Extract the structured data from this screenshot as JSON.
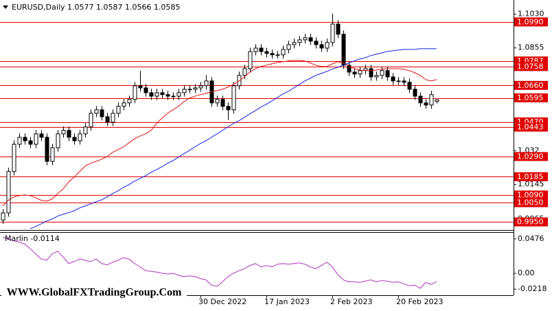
{
  "chart_data": [
    {
      "type": "candlestick",
      "title": "EURUSD,Daily  1.0577 1.0587 1.0566 1.0585",
      "categories": [
        null,
        null,
        null,
        null,
        null,
        null,
        null,
        null,
        null,
        null,
        null,
        null,
        null,
        null,
        null,
        null,
        null,
        null,
        null,
        null,
        null,
        null,
        null,
        null,
        null,
        null,
        null,
        null,
        null,
        null,
        null,
        null,
        null,
        null,
        null,
        null,
        "30 Dec 2022",
        null,
        null,
        null,
        null,
        null,
        null,
        null,
        null,
        null,
        null,
        null,
        "17 Jan 2023",
        null,
        null,
        null,
        null,
        null,
        null,
        null,
        null,
        null,
        null,
        null,
        "2 Feb 2023",
        null,
        null,
        null,
        null,
        null,
        null,
        null,
        null,
        null,
        null,
        null,
        "20 Feb 2023",
        null,
        null,
        null,
        null,
        null,
        null,
        null
      ],
      "open": [
        0.996,
        0.9997,
        1.0212,
        1.0354,
        1.039,
        1.0372,
        1.0354,
        1.0408,
        1.039,
        1.0265,
        1.0336,
        1.0408,
        1.0426,
        1.039,
        1.0372,
        1.0408,
        1.0444,
        1.0515,
        1.0533,
        1.0497,
        1.0469,
        1.0515,
        1.0551,
        1.0569,
        1.0587,
        1.0658,
        1.0647,
        1.0622,
        1.0604,
        1.0622,
        1.0612,
        1.0604,
        1.0604,
        1.0622,
        1.064,
        1.064,
        1.0647,
        1.0658,
        1.0683,
        1.0569,
        1.0587,
        1.0551,
        1.0533,
        1.0658,
        1.0712,
        1.0747,
        1.0836,
        1.0854,
        1.0836,
        1.0826,
        1.0819,
        1.0819,
        1.0847,
        1.0872,
        1.0883,
        1.0897,
        1.0908,
        1.089,
        1.0872,
        1.0854,
        1.0883,
        1.0979,
        1.0926,
        1.0765,
        1.0729,
        1.0719,
        1.0737,
        1.0747,
        1.0704,
        1.0712,
        1.0737,
        1.0704,
        1.0683,
        1.0683,
        1.0676,
        1.064,
        1.0604,
        1.0569,
        1.0558,
        1.0577
      ],
      "high": [
        1.0017,
        1.0232,
        1.0374,
        1.041,
        1.041,
        1.0392,
        1.0428,
        1.0428,
        1.041,
        1.0356,
        1.0428,
        1.0446,
        1.0446,
        1.041,
        1.0428,
        1.0464,
        1.0535,
        1.0553,
        1.0553,
        1.0517,
        1.0535,
        1.0571,
        1.0589,
        1.0607,
        1.0678,
        1.0736,
        1.0667,
        1.0642,
        1.0642,
        1.0642,
        1.0632,
        1.0624,
        1.0642,
        1.066,
        1.066,
        1.0667,
        1.0678,
        1.0713,
        1.0703,
        1.0607,
        1.0607,
        1.0571,
        1.0678,
        1.0732,
        1.0767,
        1.0856,
        1.0874,
        1.0874,
        1.0856,
        1.0846,
        1.0839,
        1.0867,
        1.0892,
        1.0903,
        1.0917,
        1.0928,
        1.0928,
        1.091,
        1.0892,
        1.0903,
        1.1033,
        1.0999,
        1.0946,
        1.0785,
        1.0749,
        1.0757,
        1.0767,
        1.0767,
        1.0732,
        1.0757,
        1.0757,
        1.0724,
        1.0703,
        1.0703,
        1.0696,
        1.066,
        1.0624,
        1.0589,
        1.0632,
        1.0587
      ],
      "low": [
        0.994,
        0.9977,
        1.0192,
        1.0334,
        1.0352,
        1.0334,
        1.0334,
        1.037,
        1.0245,
        1.0245,
        1.0316,
        1.0388,
        1.037,
        1.0352,
        1.0352,
        1.0388,
        1.0424,
        1.0495,
        1.0477,
        1.0449,
        1.0449,
        1.0495,
        1.0531,
        1.0549,
        1.0567,
        1.0627,
        1.0602,
        1.0584,
        1.0584,
        1.0592,
        1.0584,
        1.0584,
        1.0584,
        1.0602,
        1.062,
        1.062,
        1.0627,
        1.0638,
        1.0549,
        1.0549,
        1.0531,
        1.048,
        1.0513,
        1.0638,
        1.0692,
        1.0727,
        1.0816,
        1.0816,
        1.0806,
        1.0799,
        1.0799,
        1.0799,
        1.0827,
        1.0852,
        1.0863,
        1.0877,
        1.087,
        1.0852,
        1.0834,
        1.0834,
        1.0863,
        1.0906,
        1.0745,
        1.0709,
        1.0699,
        1.0699,
        1.0717,
        1.0684,
        1.0684,
        1.0692,
        1.0684,
        1.0663,
        1.0663,
        1.0656,
        1.062,
        1.0584,
        1.0549,
        1.0538,
        1.0538,
        1.0566
      ],
      "close": [
        0.9997,
        1.0212,
        1.0354,
        1.039,
        1.0372,
        1.0354,
        1.0408,
        1.039,
        1.0265,
        1.0336,
        1.0408,
        1.0426,
        1.039,
        1.0372,
        1.0408,
        1.0444,
        1.0515,
        1.0533,
        1.0497,
        1.0469,
        1.0515,
        1.0551,
        1.0569,
        1.0587,
        1.0658,
        1.0647,
        1.0622,
        1.0604,
        1.0622,
        1.0612,
        1.0604,
        1.0604,
        1.0622,
        1.064,
        1.064,
        1.0647,
        1.0658,
        1.0683,
        1.0569,
        1.0587,
        1.0551,
        1.0533,
        1.0658,
        1.0712,
        1.0747,
        1.0836,
        1.0854,
        1.0836,
        1.0826,
        1.0819,
        1.0819,
        1.0847,
        1.0872,
        1.0883,
        1.0897,
        1.0908,
        1.089,
        1.0872,
        1.0854,
        1.0883,
        1.0979,
        1.0926,
        1.0765,
        1.0729,
        1.0719,
        1.0737,
        1.0747,
        1.0704,
        1.0712,
        1.0737,
        1.0704,
        1.0683,
        1.0683,
        1.0676,
        1.064,
        1.0604,
        1.0569,
        1.0558,
        1.0612,
        1.0585
      ],
      "up_color": "#ffffff",
      "down_color": "#000000",
      "candle_outline": "#000000",
      "lines": [
        {
          "color": "#e01010",
          "values": [
            1.0033,
            1.0062,
            1.008,
            1.0087,
            1.009,
            1.0087,
            1.0076,
            1.0062,
            1.0058,
            1.0069,
            1.0097,
            1.0122,
            1.0158,
            1.0183,
            1.0212,
            1.024,
            1.0255,
            1.0265,
            1.0276,
            1.029,
            1.0312,
            1.0326,
            1.034,
            1.0362,
            1.0383,
            1.0397,
            1.0408,
            1.0426,
            1.0462,
            1.049,
            1.0515,
            1.0533,
            1.0551,
            1.0576,
            1.0594,
            1.0604,
            1.0612,
            1.0619,
            1.0626,
            1.0633,
            1.064,
            1.0651,
            1.0665,
            1.0683,
            1.0704,
            1.0729,
            1.0747,
            1.0758,
            1.0765,
            1.0772,
            1.0779,
            1.0783,
            1.0787,
            1.079,
            1.079,
            1.0787,
            1.0776,
            1.0765,
            1.0758,
            1.0758,
            1.0772,
            1.0783,
            1.0776,
            1.0762,
            1.0747,
            1.074,
            1.0737,
            1.0737,
            1.074,
            1.0744,
            1.0747,
            1.0747,
            1.0747,
            1.0744,
            1.0737,
            1.0726,
            1.0712,
            1.069,
            1.0683,
            1.069
          ]
        },
        {
          "color": "#1020e0",
          "values": [
            null,
            null,
            null,
            null,
            null,
            0.9915,
            0.9926,
            0.994,
            0.9955,
            0.9965,
            0.998,
            0.999,
            0.9998,
            1.0008,
            1.0023,
            1.0033,
            1.0044,
            1.0055,
            1.0065,
            1.008,
            1.0097,
            1.0112,
            1.013,
            1.0144,
            1.0162,
            1.0176,
            1.019,
            1.0208,
            1.0222,
            1.0237,
            1.0255,
            1.0269,
            1.0287,
            1.0305,
            1.0322,
            1.034,
            1.0358,
            1.0372,
            1.039,
            1.0408,
            1.0426,
            1.0444,
            1.0462,
            1.0476,
            1.0494,
            1.0512,
            1.0529,
            1.0547,
            1.0562,
            1.0579,
            1.0597,
            1.0615,
            1.0629,
            1.0647,
            1.0665,
            1.0683,
            1.0697,
            1.0712,
            1.0722,
            1.0733,
            1.0744,
            1.0754,
            1.0765,
            1.0776,
            1.0787,
            1.0797,
            1.0804,
            1.0815,
            1.0822,
            1.0829,
            1.0836,
            1.084,
            1.0844,
            1.0847,
            1.0847,
            1.0847,
            1.0851,
            1.0851,
            1.0851,
            1.0851
          ]
        }
      ],
      "levels": [
        {
          "value": 1.099,
          "label": "1.0990"
        },
        {
          "value": 1.0787,
          "label": "1.0787"
        },
        {
          "value": 1.0758,
          "label": "1.0758"
        },
        {
          "value": 1.066,
          "label": "1.0660"
        },
        {
          "value": 1.0595,
          "label": "1.0595"
        },
        {
          "value": 1.047,
          "label": "1.0470"
        },
        {
          "value": 1.0443,
          "label": "1.0443"
        },
        {
          "value": 1.029,
          "label": "1.0290"
        },
        {
          "value": 1.0185,
          "label": "1.0185"
        },
        {
          "value": 1.009,
          "label": "1.0090"
        },
        {
          "value": 1.005,
          "label": "1.0050"
        },
        {
          "value": 0.995,
          "label": "0.9950"
        }
      ],
      "level_color": "#e00000",
      "ylim": [
        0.9908,
        1.1104
      ],
      "yticks": [
        {
          "value": 1.103,
          "label": "1.1030"
        },
        1.0855,
        1.032,
        1.0145,
        0.9965
      ]
    },
    {
      "type": "line",
      "title": "Marlin -0.0114",
      "series": [
        {
          "color": "#b030c0",
          "values": [
            0.0494,
            0.0476,
            0.0449,
            0.0431,
            0.0404,
            0.0341,
            0.0269,
            0.0198,
            0.018,
            0.0269,
            0.0305,
            0.0225,
            0.0135,
            0.0162,
            0.0198,
            0.018,
            0.0162,
            0.0198,
            0.0135,
            0.0117,
            0.0153,
            0.018,
            0.0216,
            0.0198,
            0.0135,
            0.009,
            0.0036,
            0.0027,
            0.0018,
            0,
            -0.0009,
            0,
            -0.0027,
            -0.0045,
            -0.0036,
            -0.0045,
            -0.0072,
            -0.009,
            -0.0162,
            -0.018,
            -0.0117,
            -0.0045,
            0,
            0.0036,
            0.0063,
            0.0108,
            0.0135,
            0.009,
            0.0108,
            0.009,
            0.0126,
            0.0135,
            0.0126,
            0.0135,
            0.0144,
            0.0126,
            0.009,
            0.0063,
            0.0108,
            0.0153,
            0.009,
            -0.0018,
            -0.009,
            -0.0117,
            -0.0117,
            -0.0126,
            -0.0108,
            -0.009,
            -0.0117,
            -0.0099,
            -0.0108,
            -0.0126,
            -0.0117,
            -0.0144,
            -0.0171,
            -0.0162,
            -0.0207,
            -0.0126,
            -0.0153,
            -0.0114
          ]
        }
      ],
      "ylim": [
        -0.0302,
        0.056
      ],
      "yticks": [
        0.0476,
        {
          "value": 0,
          "label": "0.00"
        },
        -0.0218
      ]
    }
  ],
  "watermark": "WWW.GlobalFXTradingGroup.Com"
}
